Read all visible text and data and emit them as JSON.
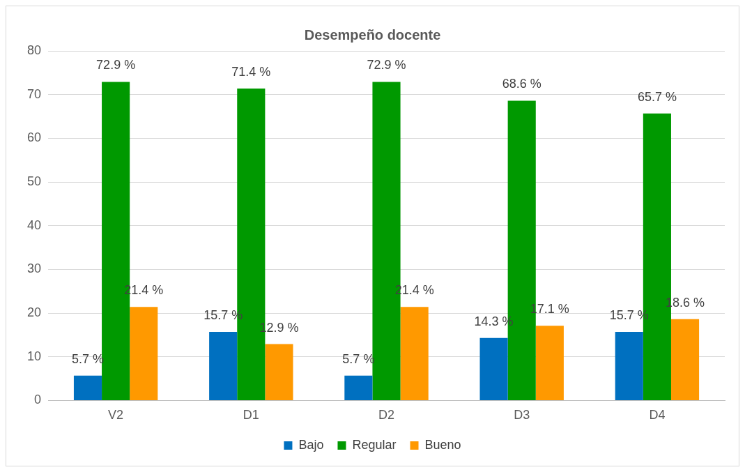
{
  "chart_data": {
    "type": "bar",
    "title": "Desempeño docente",
    "categories": [
      "V2",
      "D1",
      "D2",
      "D3",
      "D4"
    ],
    "series": [
      {
        "name": "Bajo",
        "color": "#0070c0",
        "values": [
          5.7,
          15.7,
          5.7,
          14.3,
          15.7
        ],
        "value_labels": [
          "5.7 %",
          "15.7 %",
          "5.7 %",
          "14.3 %",
          "15.7 %"
        ]
      },
      {
        "name": "Regular",
        "color": "#009900",
        "values": [
          72.9,
          71.4,
          72.9,
          68.6,
          65.7
        ],
        "value_labels": [
          "72.9 %",
          "71.4 %",
          "72.9 %",
          "68.6 %",
          "65.7 %"
        ]
      },
      {
        "name": "Bueno",
        "color": "#ff9900",
        "values": [
          21.4,
          12.9,
          21.4,
          17.1,
          18.6
        ],
        "value_labels": [
          "21.4 %",
          "12.9 %",
          "21.4 %",
          "17.1 %",
          "18.6 %"
        ]
      }
    ],
    "ylim": [
      0,
      80
    ],
    "yticks": [
      0,
      10,
      20,
      30,
      40,
      50,
      60,
      70,
      80
    ],
    "grid": "y",
    "legend": "bottom"
  }
}
